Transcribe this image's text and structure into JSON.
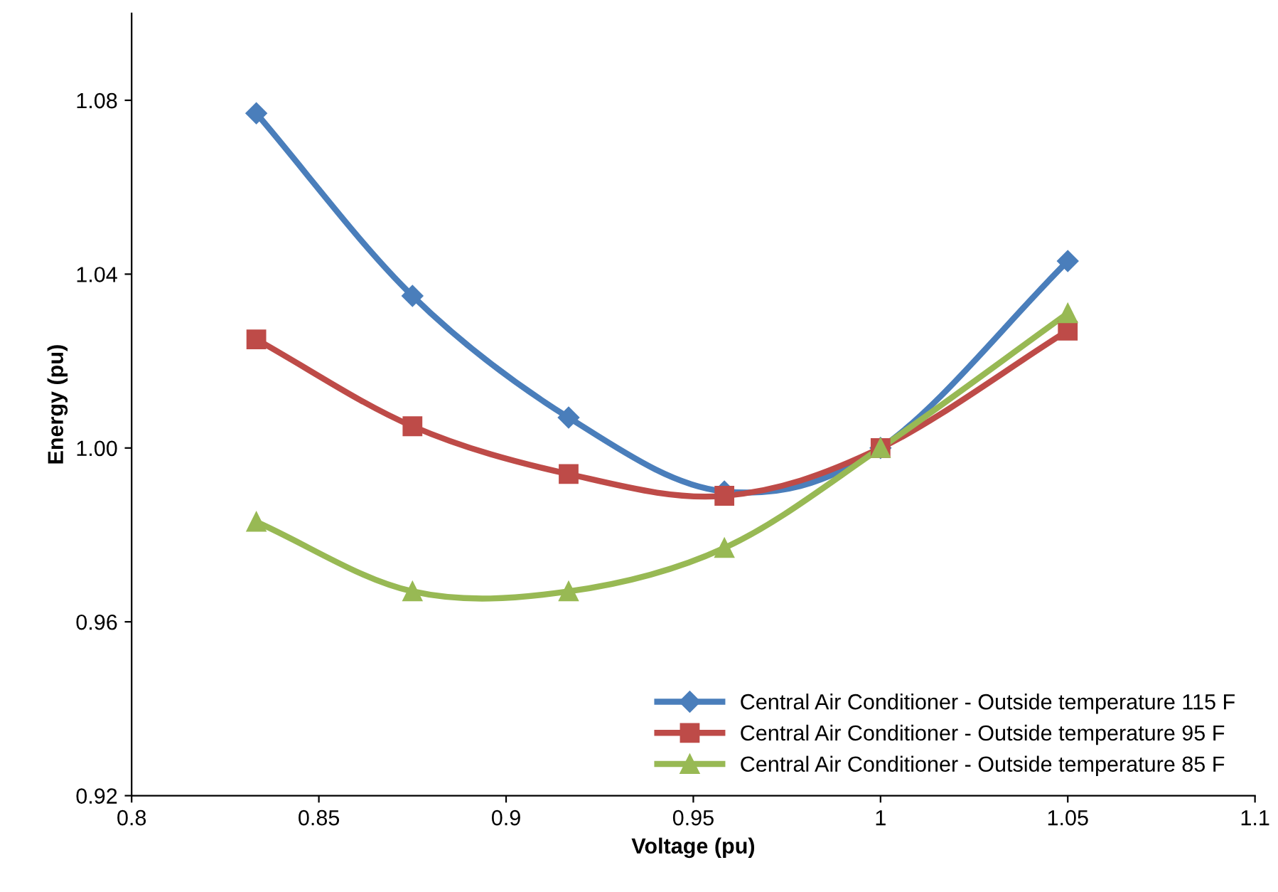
{
  "chart_data": {
    "type": "line",
    "xlabel": "Voltage (pu)",
    "ylabel": "Energy (pu)",
    "x": [
      0.8333,
      0.875,
      0.9167,
      0.9583,
      1.0,
      1.05
    ],
    "xlim": [
      0.8,
      1.1
    ],
    "xticks": [
      0.8,
      0.85,
      0.9,
      0.95,
      1,
      1.05,
      1.1
    ],
    "ylim": [
      0.92,
      1.1
    ],
    "yticks": [
      {
        "value": 0.92,
        "label": "0.92"
      },
      {
        "value": 0.96,
        "label": "0.96"
      },
      {
        "value": 1.0,
        "label": "1.00"
      },
      {
        "value": 1.04,
        "label": "1.04"
      },
      {
        "value": 1.08,
        "label": "1.08"
      }
    ],
    "grid": false,
    "legend": "bottom right",
    "line_style": "solid",
    "series": [
      {
        "name": "Central Air Conditioner - Outside temperature 115 F",
        "color": "#4a7ebb",
        "marker": "diamond",
        "values": [
          1.077,
          1.035,
          1.007,
          0.99,
          1.0,
          1.043
        ]
      },
      {
        "name": "Central Air Conditioner - Outside temperature 95 F",
        "color": "#be4b48",
        "marker": "square",
        "values": [
          1.025,
          1.005,
          0.994,
          0.989,
          1.0,
          1.027
        ]
      },
      {
        "name": "Central Air Conditioner - Outside temperature 85 F",
        "color": "#98b954",
        "marker": "triangle",
        "values": [
          0.983,
          0.967,
          0.967,
          0.977,
          1.0,
          1.031
        ]
      }
    ]
  }
}
